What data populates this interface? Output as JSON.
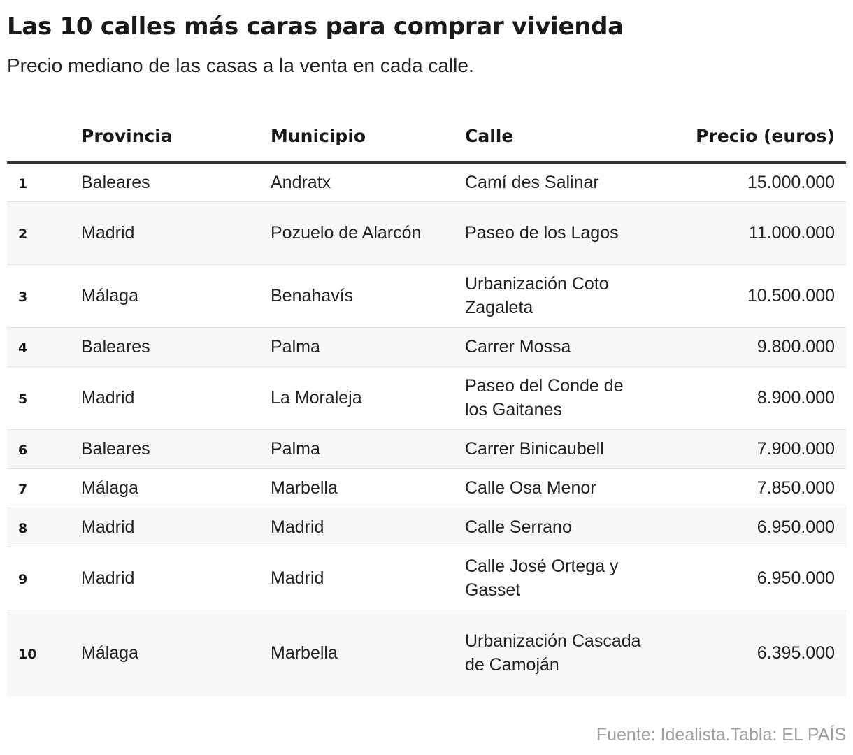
{
  "title": "Las 10 calles más caras para comprar vivienda",
  "subtitle": "Precio mediano de las casas a la venta en cada calle.",
  "source": "Fuente: Idealista.Tabla: EL PAÍS",
  "chart_data": {
    "type": "table",
    "columns": [
      "",
      "Provincia",
      "Municipio",
      "Calle",
      "Precio (euros)"
    ],
    "rows": [
      {
        "rank": "1",
        "provincia": "Baleares",
        "municipio": "Andratx",
        "calle": "Camí des Salinar",
        "precio": "15.000.000"
      },
      {
        "rank": "2",
        "provincia": "Madrid",
        "municipio": "Pozuelo de Alarcón",
        "calle": "Paseo de los Lagos",
        "precio": "11.000.000"
      },
      {
        "rank": "3",
        "provincia": "Málaga",
        "municipio": "Benahavís",
        "calle": "Urbanización Coto Zagaleta",
        "precio": "10.500.000"
      },
      {
        "rank": "4",
        "provincia": "Baleares",
        "municipio": "Palma",
        "calle": "Carrer Mossa",
        "precio": "9.800.000"
      },
      {
        "rank": "5",
        "provincia": "Madrid",
        "municipio": "La Moraleja",
        "calle": "Paseo del Conde de los Gaitanes",
        "precio": "8.900.000"
      },
      {
        "rank": "6",
        "provincia": "Baleares",
        "municipio": "Palma",
        "calle": "Carrer Binicaubell",
        "precio": "7.900.000"
      },
      {
        "rank": "7",
        "provincia": "Málaga",
        "municipio": "Marbella",
        "calle": "Calle Osa Menor",
        "precio": "7.850.000"
      },
      {
        "rank": "8",
        "provincia": "Madrid",
        "municipio": "Madrid",
        "calle": "Calle Serrano",
        "precio": "6.950.000"
      },
      {
        "rank": "9",
        "provincia": "Madrid",
        "municipio": "Madrid",
        "calle": "Calle José Ortega y Gasset",
        "precio": "6.950.000"
      },
      {
        "rank": "10",
        "provincia": "Málaga",
        "municipio": "Marbella",
        "calle": "Urbanización Cascada de Camoján",
        "precio": "6.395.000"
      }
    ]
  }
}
